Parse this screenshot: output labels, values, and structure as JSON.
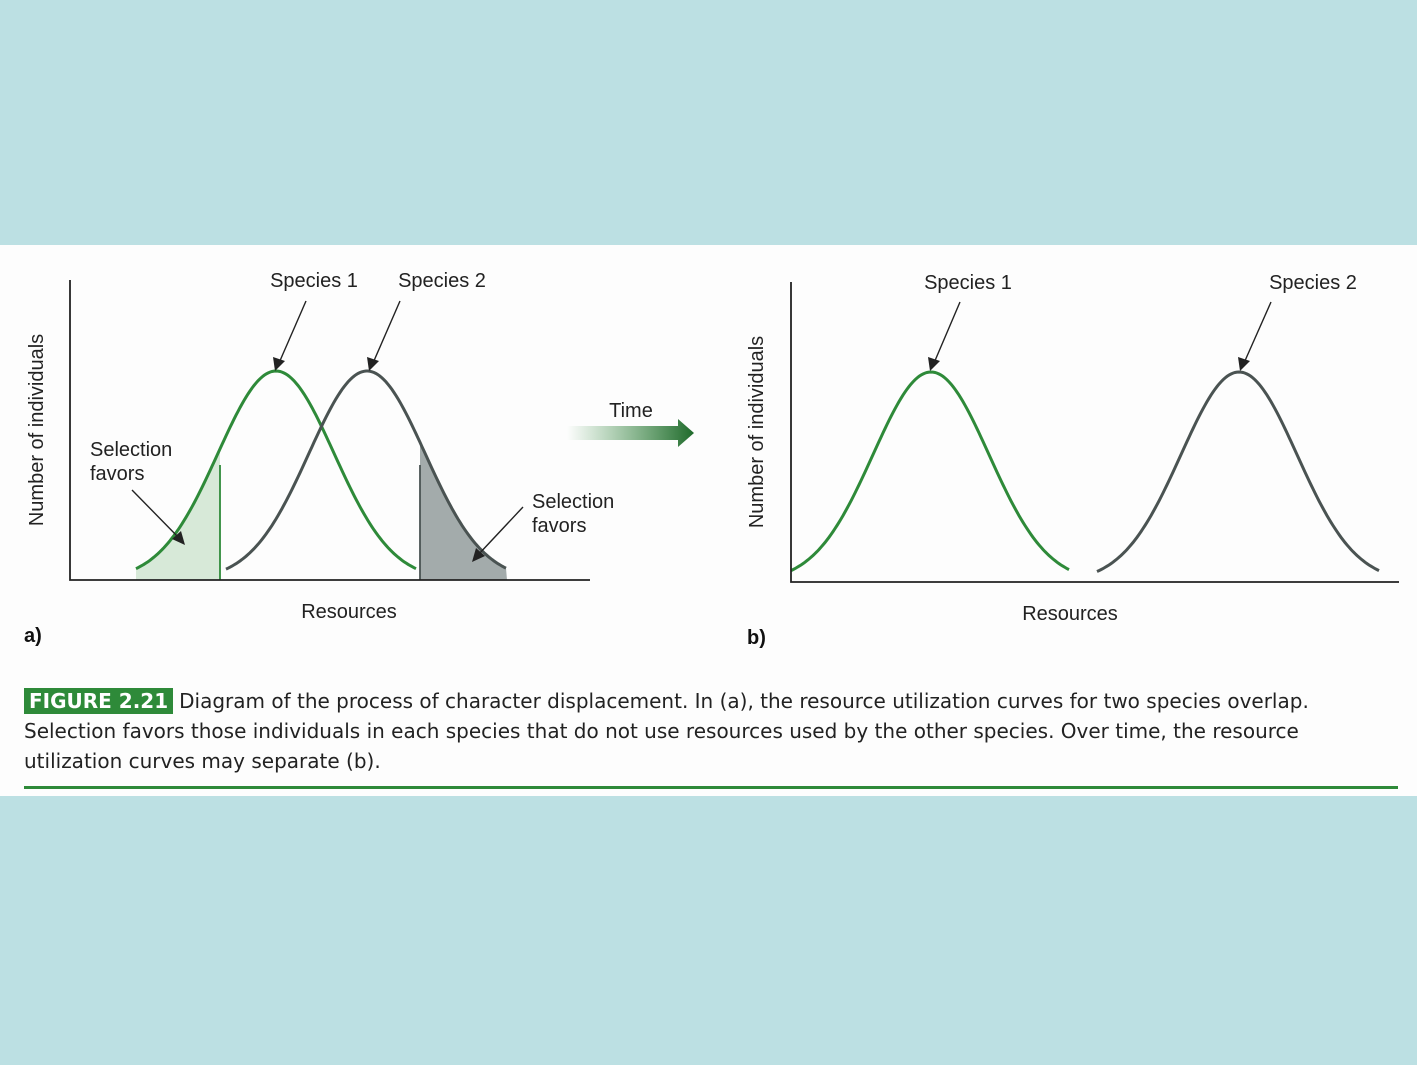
{
  "panel_a": {
    "label": "a)",
    "y_axis_label": "Number of individuals",
    "x_axis_label": "Resources",
    "species1_label": "Species 1",
    "species2_label": "Species 2",
    "selection_left": [
      "Selection",
      "favors"
    ],
    "selection_right": [
      "Selection",
      "favors"
    ]
  },
  "arrow": {
    "label": "Time"
  },
  "panel_b": {
    "label": "b)",
    "y_axis_label": "Number of individuals",
    "x_axis_label": "Resources",
    "species1_label": "Species 1",
    "species2_label": "Species 2"
  },
  "caption": {
    "figure_tag": "FIGURE 2.21",
    "text": "Diagram of the process of character displacement. In (a), the resource utilization curves for two species overlap. Selection favors those individuals in each species that do not use resources used by the other species. Over time, the resource utilization curves may separate (b)."
  },
  "colors": {
    "species1": "#2e8a39",
    "species2": "#4a5352",
    "background": "#bce0e3",
    "shade_species1": "#d7e9d8",
    "shade_species2": "#a3abab"
  }
}
